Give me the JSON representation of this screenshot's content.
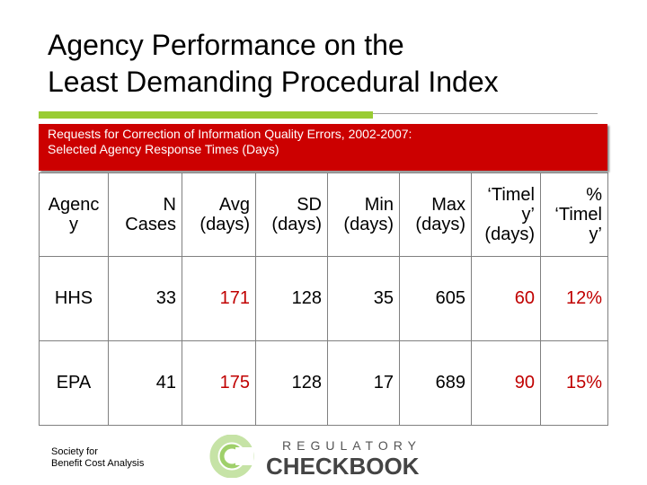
{
  "title": {
    "line1": "Agency Performance on the",
    "line2": "Least Demanding Procedural Index"
  },
  "banner": {
    "line1": "Requests for Correction of Information Quality Errors, 2002-2007:",
    "line2": "Selected Agency Response Times (Days)"
  },
  "table": {
    "headers": [
      {
        "lines": [
          "Agenc",
          "y"
        ]
      },
      {
        "lines": [
          "N",
          "Cases"
        ]
      },
      {
        "lines": [
          "Avg",
          "(days)"
        ]
      },
      {
        "lines": [
          "SD",
          "(days)"
        ]
      },
      {
        "lines": [
          "Min",
          "(days)"
        ]
      },
      {
        "lines": [
          "Max",
          "(days)"
        ]
      },
      {
        "lines": [
          "‘Timel",
          "y’",
          "(days)"
        ]
      },
      {
        "lines": [
          "%",
          "‘Timel",
          "y’"
        ]
      }
    ],
    "rows": [
      {
        "agency": "HHS",
        "n": "33",
        "avg": "171",
        "sd": "128",
        "min": "35",
        "max": "605",
        "timely": "60",
        "pct": "12%"
      },
      {
        "agency": "EPA",
        "n": "41",
        "avg": "175",
        "sd": "128",
        "min": "17",
        "max": "689",
        "timely": "90",
        "pct": "15%"
      }
    ]
  },
  "footer": {
    "line1": "Society for",
    "line2": "Benefit Cost Analysis"
  },
  "logo": {
    "top_text": "REGULATORY",
    "bottom_text": "CHECKBOOK",
    "icon": "check-c-icon"
  },
  "colors": {
    "banner": "#cc0000",
    "accent_green": "#99cc33",
    "highlight_red": "#c00000"
  }
}
